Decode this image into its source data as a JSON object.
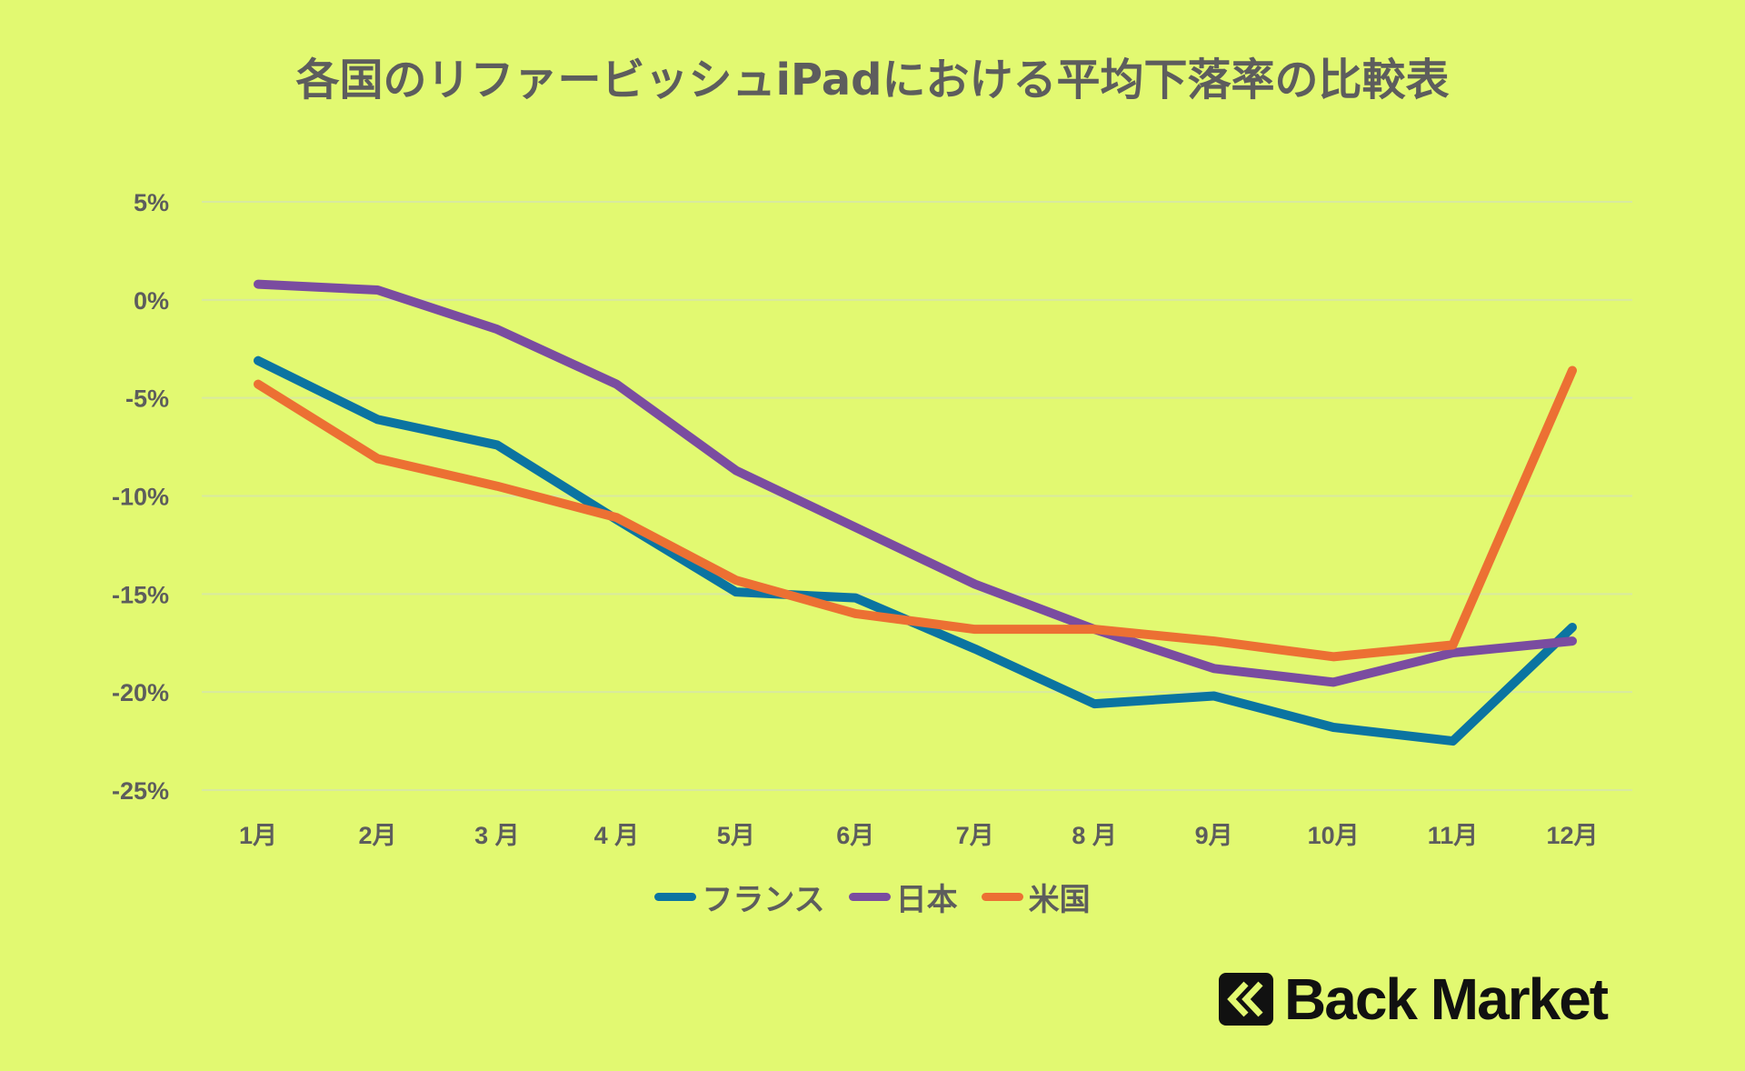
{
  "chart_data": {
    "type": "line",
    "title": "各国のリファービッシュiPadにおける平均下落率の比較表",
    "categories": [
      "1月",
      "2月",
      "3 月",
      "4 月",
      "5月",
      "6月",
      "7月",
      "8 月",
      "9月",
      "10月",
      "11月",
      "12月"
    ],
    "yticks": [
      "5%",
      "0%",
      "-5%",
      "-10%",
      "-15%",
      "-20%",
      "-25%"
    ],
    "ytick_values": [
      5,
      0,
      -5,
      -10,
      -15,
      -20,
      -25
    ],
    "ylim": [
      -25,
      5
    ],
    "xlabel": "",
    "ylabel": "",
    "grid": true,
    "legend_position": "bottom",
    "series": [
      {
        "name": "フランス",
        "color": "#0b74a1",
        "values": [
          -3.1,
          -6.1,
          -7.4,
          -11.2,
          -14.9,
          -15.2,
          -17.8,
          -20.6,
          -20.2,
          -21.8,
          -22.5,
          -16.7
        ]
      },
      {
        "name": "日本",
        "color": "#7a4ca0",
        "values": [
          0.8,
          0.5,
          -1.5,
          -4.3,
          -8.7,
          -11.6,
          -14.5,
          -16.8,
          -18.8,
          -19.5,
          -18.0,
          -17.4
        ]
      },
      {
        "name": "米国",
        "color": "#ec7033",
        "values": [
          -4.3,
          -8.1,
          -9.5,
          -11.1,
          -14.3,
          -16.0,
          -16.8,
          -16.8,
          -17.4,
          -18.2,
          -17.6,
          -3.6
        ]
      }
    ]
  },
  "logo": {
    "text": "Back Market"
  }
}
